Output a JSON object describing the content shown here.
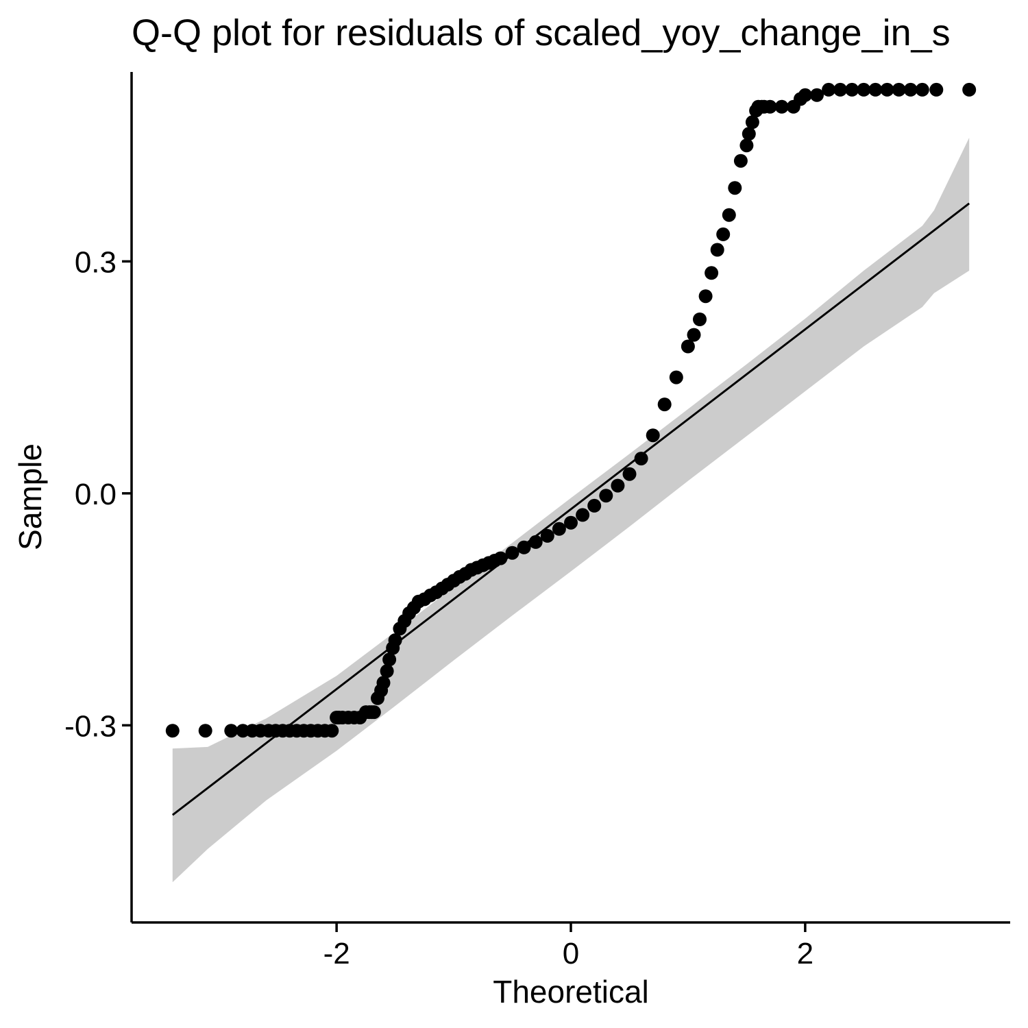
{
  "chart_data": {
    "type": "scatter",
    "title": "Q-Q plot for residuals of scaled_yoy_change_in_s",
    "xlabel": "Theoretical",
    "ylabel": "Sample",
    "xlim": [
      -3.75,
      3.75
    ],
    "ylim": [
      -0.555,
      0.545
    ],
    "x_ticks": [
      {
        "value": -2,
        "label": "-2"
      },
      {
        "value": 0,
        "label": "0"
      },
      {
        "value": 2,
        "label": "2"
      }
    ],
    "y_ticks": [
      {
        "value": -0.3,
        "label": "-0.3"
      },
      {
        "value": 0.0,
        "label": "0.0"
      },
      {
        "value": 0.3,
        "label": "0.3"
      }
    ],
    "grid": false,
    "legend": "none",
    "reference_line": {
      "x": [
        -3.4,
        3.4
      ],
      "y": [
        -0.416,
        0.375
      ],
      "color": "#000000"
    },
    "confidence_band": {
      "x": [
        -3.4,
        -3.1,
        -2.6,
        -2.0,
        -1.5,
        -1.0,
        -0.5,
        0.0,
        0.5,
        1.0,
        1.5,
        2.0,
        2.5,
        3.0,
        3.1,
        3.4
      ],
      "lower": [
        -0.503,
        -0.46,
        -0.397,
        -0.333,
        -0.275,
        -0.216,
        -0.158,
        -0.101,
        -0.043,
        0.016,
        0.074,
        0.132,
        0.19,
        0.241,
        0.259,
        0.288
      ],
      "upper": [
        -0.33,
        -0.328,
        -0.291,
        -0.236,
        -0.179,
        -0.121,
        -0.064,
        -0.006,
        0.051,
        0.109,
        0.167,
        0.226,
        0.288,
        0.346,
        0.366,
        0.46
      ],
      "color": "#cccccc"
    },
    "point_color": "#000000",
    "series": [
      {
        "x": [
          -3.4,
          -3.12,
          -2.9,
          -2.8,
          -2.72,
          -2.65,
          -2.58,
          -2.52,
          -2.46,
          -2.4,
          -2.34,
          -2.28,
          -2.22,
          -2.16,
          -2.1,
          -2.04,
          -2.0,
          -1.98,
          -1.95,
          -1.9,
          -1.85,
          -1.8,
          -1.75,
          -1.72,
          -1.7,
          -1.68,
          -1.65,
          -1.62,
          -1.6,
          -1.57,
          -1.55,
          -1.52,
          -1.5,
          -1.46,
          -1.42,
          -1.38,
          -1.34,
          -1.3,
          -1.25,
          -1.2,
          -1.15,
          -1.1,
          -1.05,
          -1.0,
          -0.95,
          -0.9,
          -0.85,
          -0.8,
          -0.75,
          -0.7,
          -0.65,
          -0.6,
          -0.5,
          -0.4,
          -0.3,
          -0.2,
          -0.1,
          0.0,
          0.1,
          0.2,
          0.3,
          0.4,
          0.5,
          0.6,
          0.7,
          0.8,
          0.9,
          1.0,
          1.05,
          1.1,
          1.15,
          1.2,
          1.25,
          1.3,
          1.35,
          1.4,
          1.45,
          1.5,
          1.52,
          1.55,
          1.58,
          1.6,
          1.63,
          1.65,
          1.7,
          1.8,
          1.9,
          1.96,
          2.0,
          2.1,
          2.2,
          2.3,
          2.4,
          2.5,
          2.6,
          2.7,
          2.8,
          2.9,
          3.0,
          3.12,
          3.4
        ],
        "y": [
          -0.307,
          -0.307,
          -0.307,
          -0.307,
          -0.307,
          -0.307,
          -0.307,
          -0.307,
          -0.307,
          -0.307,
          -0.307,
          -0.307,
          -0.307,
          -0.307,
          -0.307,
          -0.307,
          -0.29,
          -0.29,
          -0.29,
          -0.29,
          -0.29,
          -0.29,
          -0.283,
          -0.283,
          -0.283,
          -0.283,
          -0.265,
          -0.255,
          -0.245,
          -0.23,
          -0.215,
          -0.2,
          -0.19,
          -0.175,
          -0.165,
          -0.155,
          -0.148,
          -0.14,
          -0.137,
          -0.132,
          -0.128,
          -0.123,
          -0.118,
          -0.113,
          -0.108,
          -0.104,
          -0.099,
          -0.096,
          -0.093,
          -0.09,
          -0.087,
          -0.084,
          -0.077,
          -0.07,
          -0.063,
          -0.055,
          -0.046,
          -0.038,
          -0.028,
          -0.016,
          -0.003,
          0.01,
          0.025,
          0.045,
          0.075,
          0.115,
          0.15,
          0.19,
          0.205,
          0.225,
          0.255,
          0.285,
          0.315,
          0.335,
          0.36,
          0.395,
          0.43,
          0.45,
          0.465,
          0.48,
          0.495,
          0.5,
          0.5,
          0.5,
          0.5,
          0.5,
          0.5,
          0.51,
          0.515,
          0.515,
          0.522,
          0.522,
          0.522,
          0.522,
          0.522,
          0.522,
          0.522,
          0.522,
          0.522,
          0.522,
          0.522
        ]
      }
    ]
  }
}
